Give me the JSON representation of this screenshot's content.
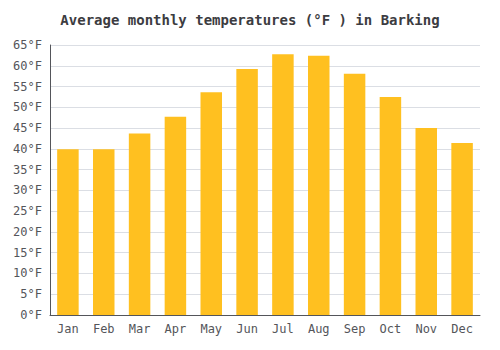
{
  "chart_data": {
    "type": "bar",
    "title": "Average monthly temperatures (°F ) in Barking",
    "categories": [
      "Jan",
      "Feb",
      "Mar",
      "Apr",
      "May",
      "Jun",
      "Jul",
      "Aug",
      "Sep",
      "Oct",
      "Nov",
      "Dec"
    ],
    "values": [
      39.9,
      39.9,
      43.7,
      47.7,
      53.6,
      59.2,
      62.8,
      62.4,
      58.1,
      52.5,
      45.0,
      41.4
    ],
    "color": "#FFC020",
    "ylim": [
      0,
      65
    ],
    "yticks": [
      {
        "value": 0,
        "label": "0°F"
      },
      {
        "value": 5,
        "label": "5°F"
      },
      {
        "value": 10,
        "label": "10°F"
      },
      {
        "value": 15,
        "label": "15°F"
      },
      {
        "value": 20,
        "label": "20°F"
      },
      {
        "value": 25,
        "label": "25°F"
      },
      {
        "value": 30,
        "label": "30°F"
      },
      {
        "value": 35,
        "label": "35°F"
      },
      {
        "value": 40,
        "label": "40°F"
      },
      {
        "value": 45,
        "label": "45°F"
      },
      {
        "value": 50,
        "label": "50°F"
      },
      {
        "value": 55,
        "label": "55°F"
      },
      {
        "value": 60,
        "label": "60°F"
      },
      {
        "value": 65,
        "label": "65°F"
      }
    ],
    "grid": true
  }
}
